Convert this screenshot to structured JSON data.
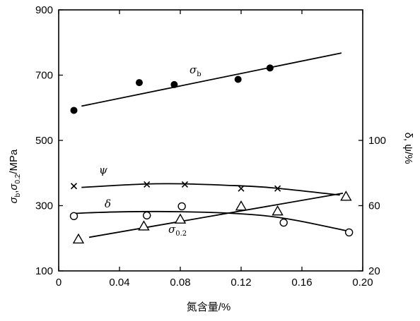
{
  "chart_data": {
    "type": "scatter",
    "xlabel": "氮含量/%",
    "ylabel_left": "σb,σ0.2/MPa",
    "ylabel_left_parts": {
      "s1": "σ",
      "sub1": "b",
      "sep": ",",
      "s2": "σ",
      "sub2": "0.2",
      "unit": "/MPa"
    },
    "ylabel_right": "δ, ψ/%",
    "xlim": [
      0,
      0.2
    ],
    "ylim_left": [
      100,
      900
    ],
    "ylim_right": [
      20,
      180
    ],
    "xticks": [
      "0",
      "0.04",
      "0.08",
      "0.12",
      "0.16",
      "0.20"
    ],
    "yticks_left": [
      "100",
      "300",
      "500",
      "700",
      "900"
    ],
    "yticks_right": [
      "20",
      "60",
      "100"
    ],
    "grid": false,
    "series": [
      {
        "name": "σb",
        "label": {
          "sym": "σ",
          "sub": "b"
        },
        "axis": "left",
        "marker": "filled-circle",
        "x": [
          0.01,
          0.053,
          0.076,
          0.118,
          0.139
        ],
        "y": [
          592,
          677,
          671,
          687,
          722
        ],
        "fit": [
          [
            0.015,
            605
          ],
          [
            0.186,
            768
          ]
        ]
      },
      {
        "name": "ψ",
        "label": {
          "sym": "ψ",
          "sub": ""
        },
        "axis": "right",
        "marker": "x",
        "x": [
          0.01,
          0.058,
          0.083,
          0.12,
          0.144
        ],
        "y": [
          72,
          73,
          73,
          70.5,
          70.5
        ],
        "fit": [
          [
            0.015,
            71.2
          ],
          [
            0.055,
            73.2
          ],
          [
            0.08,
            73.4
          ],
          [
            0.11,
            72.5
          ],
          [
            0.14,
            71
          ],
          [
            0.185,
            66.5
          ]
        ]
      },
      {
        "name": "δ",
        "label": {
          "sym": "δ",
          "sub": ""
        },
        "axis": "right",
        "marker": "open-circle",
        "x": [
          0.01,
          0.058,
          0.081,
          0.148,
          0.191
        ],
        "y": [
          53.6,
          54,
          59.6,
          49.6,
          43.6
        ],
        "fit": [
          [
            0.011,
            55.3
          ],
          [
            0.04,
            56.2
          ],
          [
            0.08,
            56.3
          ],
          [
            0.12,
            55
          ],
          [
            0.15,
            52
          ],
          [
            0.19,
            44.5
          ]
        ]
      },
      {
        "name": "σ0.2",
        "label": {
          "sym": "σ",
          "sub": "0.2"
        },
        "axis": "left",
        "marker": "open-triangle",
        "x": [
          0.013,
          0.056,
          0.08,
          0.12,
          0.144,
          0.189
        ],
        "y": [
          197,
          237,
          258,
          298,
          283,
          328
        ],
        "fit": [
          [
            0.02,
            203
          ],
          [
            0.187,
            338
          ]
        ]
      }
    ]
  }
}
